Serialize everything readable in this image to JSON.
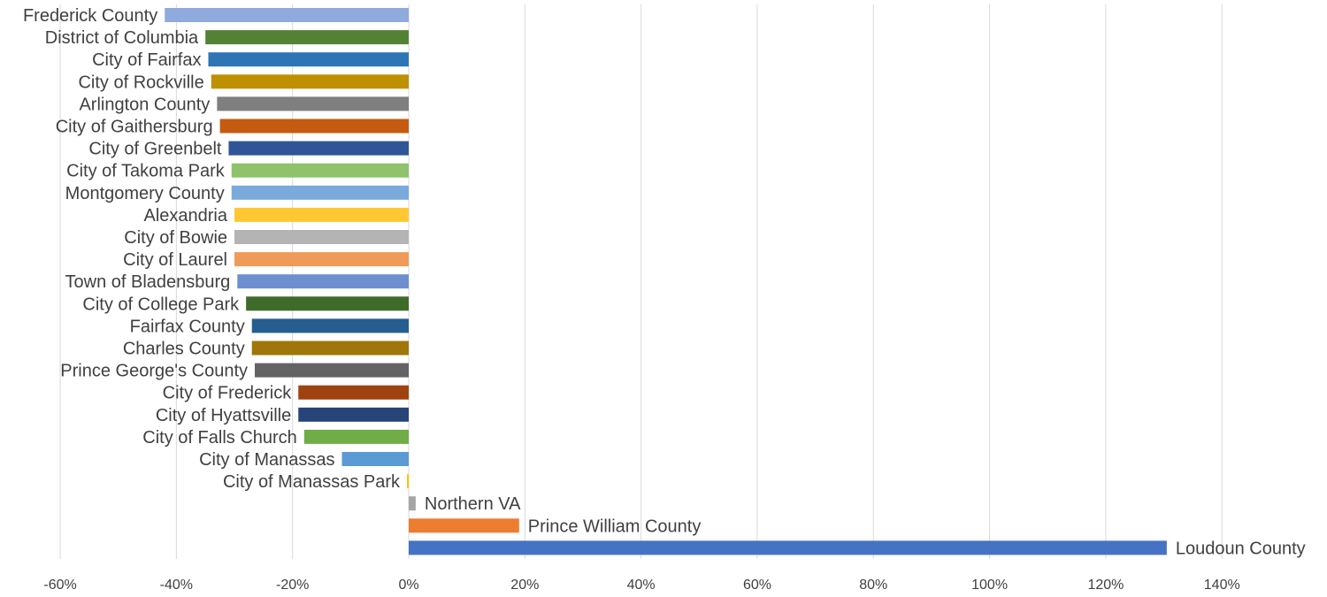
{
  "chart_data": {
    "type": "bar",
    "orientation": "horizontal",
    "categories": [
      "Frederick County",
      "District of Columbia",
      "City of Fairfax",
      "City of Rockville",
      "Arlington County",
      "City of Gaithersburg",
      "City of Greenbelt",
      "City of Takoma Park",
      "Montgomery County",
      "Alexandria",
      "City of Bowie",
      "City of Laurel",
      "Town of Bladensburg",
      "City of College Park",
      "Fairfax County",
      "Charles County",
      "Prince George's County",
      "City of Frederick",
      "City of Hyattsville",
      "City of Falls Church",
      "City of Manassas",
      "City of Manassas Park",
      "Northern VA",
      "Prince William County",
      "Loudoun County"
    ],
    "values": [
      -42,
      -35,
      -34.5,
      -34,
      -33,
      -32.5,
      -31,
      -30.5,
      -30.5,
      -30,
      -30,
      -30,
      -29.5,
      -28,
      -27,
      -27,
      -26.5,
      -19,
      -19,
      -18,
      -11.5,
      -0.3,
      1.2,
      19,
      130.5
    ],
    "colors": [
      "#8faadc",
      "#548235",
      "#2e75b6",
      "#bf9000",
      "#7f7f7f",
      "#c55a11",
      "#2f5597",
      "#8fc36b",
      "#7aaadc",
      "#ffc832",
      "#b4b4b4",
      "#f09a5a",
      "#6d8fcf",
      "#3e6a2a",
      "#255e91",
      "#9e7609",
      "#636363",
      "#9e4210",
      "#264478",
      "#70ad47",
      "#5b9bd5",
      "#ffc000",
      "#a5a5a5",
      "#ed7d31",
      "#4472c4"
    ],
    "xlim": [
      -60,
      150
    ],
    "xticks": [
      -60,
      -40,
      -20,
      0,
      20,
      40,
      60,
      80,
      100,
      120,
      140
    ],
    "xtick_labels": [
      "-60%",
      "-40%",
      "-20%",
      "0%",
      "20%",
      "40%",
      "60%",
      "80%",
      "100%",
      "120%",
      "140%"
    ],
    "grid": true,
    "legend": "none"
  }
}
